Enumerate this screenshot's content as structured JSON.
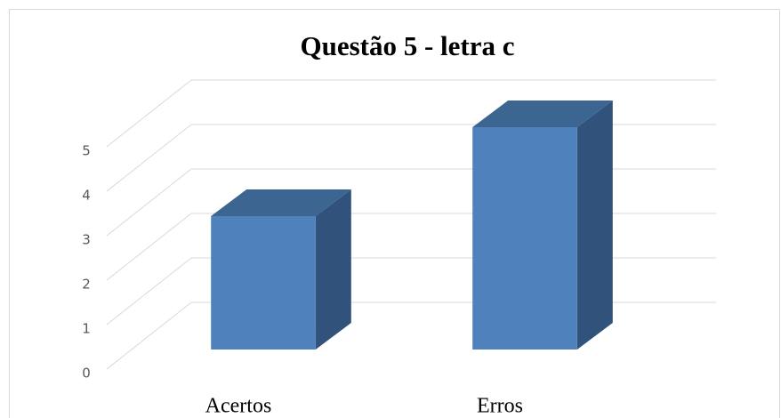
{
  "chart_data": {
    "type": "bar3d",
    "title": "Questão 5 - letra c",
    "categories": [
      "Acertos",
      "Erros"
    ],
    "values": [
      3,
      5
    ],
    "color": "#4f81bd",
    "ylim": [
      0,
      5
    ],
    "yticks": [
      0,
      1,
      2,
      3,
      4,
      5
    ],
    "grid": true
  }
}
